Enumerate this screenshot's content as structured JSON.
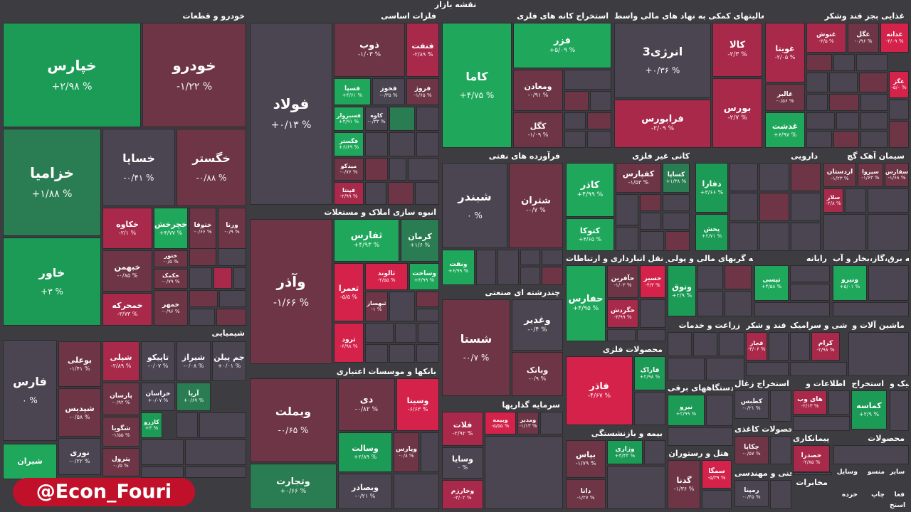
{
  "title": "نقشه بازار",
  "watermark": "@Econ_Fouri",
  "colors": {
    "background": "#3d3c40",
    "strong_green": "#1fa85b",
    "green": "#1b9b55",
    "mid_green": "#2a7d52",
    "neutral": "#4a4550",
    "dark_red": "#6d3545",
    "red": "#a8294a",
    "strong_red": "#d4224a"
  },
  "chart_data": {
    "type": "treemap",
    "sectors": [
      {
        "name": "خودرو و قطعات",
        "stocks": [
          {
            "symbol": "خپارس",
            "change": "+۲/۹۸ %"
          },
          {
            "symbol": "خودرو",
            "change": "-۱/۲۲ %"
          },
          {
            "symbol": "خزامیا",
            "change": "+۱/۸۸ %"
          },
          {
            "symbol": "خساپا",
            "change": "-۰/۴۱ %"
          },
          {
            "symbol": "خگستر",
            "change": "-۰/۸۸ %"
          },
          {
            "symbol": "خاور",
            "change": "+۳ %"
          },
          {
            "symbol": "خکاوه",
            "change": "-۲/۱ %"
          },
          {
            "symbol": "خچرخش",
            "change": "+۴/۷۷ %"
          },
          {
            "symbol": "ختوقا",
            "change": "-۰/۶۶ %"
          },
          {
            "symbol": "ورنا",
            "change": "-۰/۹ %"
          },
          {
            "symbol": "خبهمن",
            "change": "-۰/۸۵ %"
          },
          {
            "symbol": "ختور",
            "change": "-۰/۵ %"
          },
          {
            "symbol": "خکمک",
            "change": "-۰/۷۹ %"
          },
          {
            "symbol": "خمحرکه",
            "change": "-۳/۷۳ %"
          },
          {
            "symbol": "خمهر",
            "change": "-۰/۹۶ %"
          }
        ]
      },
      {
        "name": "فلزات اساسی",
        "stocks": [
          {
            "symbol": "فولاد",
            "change": "+۰/۱۳ %"
          },
          {
            "symbol": "ذوب",
            "change": "-۱/۰۳ %"
          },
          {
            "symbol": "فنفت",
            "change": "-۲/۸۹ %"
          },
          {
            "symbol": "فسپا",
            "change": "+۴/۶۱ %"
          },
          {
            "symbol": "فخوز",
            "change": "-۰/۳۵ %"
          },
          {
            "symbol": "فروژ",
            "change": "-۱/۶۵ %"
          },
          {
            "symbol": "فسبزوار",
            "change": "+۴/۹۱ %"
          },
          {
            "symbol": "کاوه",
            "change": "-۰/۳۳ %"
          },
          {
            "symbol": "فگستر",
            "change": "+۶/۶۹ %"
          },
          {
            "symbol": "میدکو",
            "change": "-۰/۷۶ %"
          },
          {
            "symbol": "فپنتا",
            "change": "-۲/۹۹ %"
          }
        ]
      },
      {
        "name": "استخراج کانه های فلزی",
        "stocks": [
          {
            "symbol": "کاما",
            "change": "+۴/۷۵ %"
          },
          {
            "symbol": "فزر",
            "change": "+۵/۰۹ %"
          },
          {
            "symbol": "ومعادن",
            "change": "-۰/۹۱ %"
          },
          {
            "symbol": "کگل",
            "change": "-۱/۰۹ %"
          }
        ]
      },
      {
        "name": "فعالیتهای کمکی به نهاد های مالی واسط",
        "stocks": [
          {
            "symbol": "انرژی3",
            "change": "+۰/۳۶ %"
          },
          {
            "symbol": "کالا",
            "change": "-۲/۳ %"
          },
          {
            "symbol": "بورس",
            "change": "-۲/۷ %"
          },
          {
            "symbol": "فرابورس",
            "change": "-۲/۰۹ %"
          }
        ]
      },
      {
        "name": "غذایی بجز قند وشکر",
        "stocks": [
          {
            "symbol": "غویتا",
            "change": "-۲/۰۵ %"
          },
          {
            "symbol": "غنوش",
            "change": "-۳/۵ %"
          },
          {
            "symbol": "غگل",
            "change": "-۰/۹۶ %"
          },
          {
            "symbol": "غدانه",
            "change": "-۴/۰۹ %"
          },
          {
            "symbol": "غالبر",
            "change": "-۰/۵۶ %"
          },
          {
            "symbol": "غگز",
            "change": "-۵/۰ %"
          },
          {
            "symbol": "غدشت",
            "change": "+۶/۹۷ %"
          }
        ]
      },
      {
        "name": "انبوه سازی املاک و مستغلات",
        "stocks": [
          {
            "symbol": "وآذر",
            "change": "-۱/۶۶ %"
          },
          {
            "symbol": "ثفارس",
            "change": "+۴/۹۳ %"
          },
          {
            "symbol": "کرمان",
            "change": "+۱/۶ %"
          },
          {
            "symbol": "ثعمرا",
            "change": "-۵/۵ %"
          },
          {
            "symbol": "ثالوند",
            "change": "-۴/۵۵ %"
          },
          {
            "symbol": "وساخت",
            "change": "+۴/۹۹ %"
          },
          {
            "symbol": "ثبهساز",
            "change": "-۱ %"
          },
          {
            "symbol": "ثرود",
            "change": "-۶/۹۸ %"
          }
        ]
      },
      {
        "name": "فرآورده های نفتی",
        "stocks": [
          {
            "symbol": "شبندر",
            "change": "۰ %"
          },
          {
            "symbol": "شتران",
            "change": "-۰/۷ %"
          },
          {
            "symbol": "ونفت",
            "change": "+۶/۹۹ %"
          }
        ]
      },
      {
        "name": "کانی غیر فلزی",
        "stocks": [
          {
            "symbol": "کاذر",
            "change": "+۴/۹۹ %"
          },
          {
            "symbol": "کفپارس",
            "change": "-۱/۵۳ %"
          },
          {
            "symbol": "کساپا",
            "change": "+۱/۳۸ %"
          },
          {
            "symbol": "کتوکا",
            "change": "+۴/۶۵ %"
          }
        ]
      },
      {
        "name": "دارویی",
        "stocks": [
          {
            "symbol": "دفارا",
            "change": "+۳/۶۶ %"
          },
          {
            "symbol": "پخش",
            "change": "+۲/۷۱ %"
          }
        ]
      },
      {
        "name": "سیمان آهک گچ",
        "stocks": [
          {
            "symbol": "اردستان",
            "change": "-۱/۲۳ %"
          },
          {
            "symbol": "سیزوا",
            "change": "-۱/۶۳ %"
          },
          {
            "symbol": "سفارس",
            "change": "-۱/۶۸ %"
          },
          {
            "symbol": "سلار",
            "change": "-۲/۸ %"
          }
        ]
      },
      {
        "name": "حمل و نقل انبارداری و ارتباطات",
        "stocks": [
          {
            "symbol": "حفارس",
            "change": "+۴/۹۵ %"
          },
          {
            "symbol": "حآفرین",
            "change": "-۱/۰۳ %"
          },
          {
            "symbol": "حسیر",
            "change": "-۴/۳ %"
          },
          {
            "symbol": "حگردش",
            "change": "-۳/۹۹ %"
          }
        ]
      },
      {
        "name": "واسطه گریهای مالی و پولی",
        "stocks": [
          {
            "symbol": "وتوق",
            "change": "+۲/۹ %"
          }
        ]
      },
      {
        "name": "رایانه",
        "stocks": [
          {
            "symbol": "تپسی",
            "change": "+۴/۵۸ %"
          }
        ]
      },
      {
        "name": "عرضه برق،گاز،بخار و آب",
        "stocks": [
          {
            "symbol": "ونیرو",
            "change": "+۵/۰۱ %"
          }
        ]
      },
      {
        "name": "شیمیایی",
        "stocks": [
          {
            "symbol": "فارس",
            "change": "۰ %"
          },
          {
            "symbol": "بوعلی",
            "change": "-۱/۴۱ %"
          },
          {
            "symbol": "شپلی",
            "change": "-۲/۸۹ %"
          },
          {
            "symbol": "تاپیکو",
            "change": "-۰/۰۷ %"
          },
          {
            "symbol": "شیراز",
            "change": "-۰/۰۸ %"
          },
          {
            "symbol": "جم پیلن",
            "change": "+۰/۰۱ %"
          },
          {
            "symbol": "شپدیس",
            "change": "-۰/۵۸ %"
          },
          {
            "symbol": "پارسان",
            "change": "-۰/۹۲ %"
          },
          {
            "symbol": "خراسان",
            "change": "+۰/۰۷ %"
          },
          {
            "symbol": "آریا",
            "change": "+۰/۶۷ %"
          },
          {
            "symbol": "شگویا",
            "change": "-۱/۵۵ %"
          },
          {
            "symbol": "کازرو",
            "change": "+۳ %"
          },
          {
            "symbol": "نوری",
            "change": "-۰/۲۲ %"
          },
          {
            "symbol": "پترول",
            "change": "-۰/۵ %"
          },
          {
            "symbol": "شیران",
            "change": ""
          }
        ]
      },
      {
        "name": "بانکها و موسسات اعتباری",
        "stocks": [
          {
            "symbol": "وبملت",
            "change": "-۰/۶۵ %"
          },
          {
            "symbol": "دی",
            "change": "-۰/۸۲ %"
          },
          {
            "symbol": "وسینا",
            "change": "-۶/۶۳ %"
          },
          {
            "symbol": "وسالت",
            "change": "+۲/۸۹ %"
          },
          {
            "symbol": "وپارس",
            "change": "-۰/۸ %"
          },
          {
            "symbol": "وتجارت",
            "change": "+۰/۶۶ %"
          },
          {
            "symbol": "وبصادر",
            "change": "-۰/۲۱ %"
          }
        ]
      },
      {
        "name": "چندرشته ای صنعتی",
        "stocks": [
          {
            "symbol": "شستا",
            "change": "-۰/۷ %"
          },
          {
            "symbol": "وغدیر",
            "change": "-۰/۴ %"
          },
          {
            "symbol": "وبانک",
            "change": "-۰/۹ %"
          }
        ]
      },
      {
        "name": "سرمایه گذاریها",
        "stocks": [
          {
            "symbol": "فلات",
            "change": "-۲/۹۲ %"
          },
          {
            "symbol": "وبیمه",
            "change": "-۵/۵۵ %"
          },
          {
            "symbol": "ومدیر",
            "change": "-۱/۱۳ %"
          },
          {
            "symbol": "وسایا",
            "change": "۰ %"
          },
          {
            "symbol": "وخارزم",
            "change": "-۳/۰۲ %"
          }
        ]
      },
      {
        "name": "محصولات فلزی",
        "stocks": [
          {
            "symbol": "فاذر",
            "change": "-۴/۶۷ %"
          },
          {
            "symbol": "فاراک",
            "change": "+۲/۹۸ %"
          }
        ]
      },
      {
        "name": "بیمه و بازنشستگی",
        "stocks": [
          {
            "symbol": "بپاس",
            "change": "-۱/۷۹ %"
          },
          {
            "symbol": "وزاری",
            "change": "+۳/۴۴ %"
          },
          {
            "symbol": "دانا",
            "change": "-۱/۲۷ %"
          }
        ]
      },
      {
        "name": "زراعت و خدمات",
        "stocks": []
      },
      {
        "name": "دستگاههای برقی",
        "stocks": [
          {
            "symbol": "نیرو",
            "change": "+۲/۹۹ %"
          }
        ]
      },
      {
        "name": "هتل و رستوران",
        "stocks": [
          {
            "symbol": "گدنا",
            "change": "-۱/۳۶ %"
          },
          {
            "symbol": "سمگا",
            "change": "-۵/۳۹ %"
          }
        ]
      },
      {
        "name": "قند و شکر",
        "stocks": [
          {
            "symbol": "قجار",
            "change": "-۳/۰۶ %"
          }
        ]
      },
      {
        "name": "کاشی و سرامیک",
        "stocks": [
          {
            "symbol": "کرام",
            "change": "-۲/۹۸ %"
          }
        ]
      },
      {
        "name": "ماشین آلات و",
        "stocks": []
      },
      {
        "name": "استخراج زغال",
        "stocks": [
          {
            "symbol": "کطبس",
            "change": "-۰/۲۱ %"
          }
        ]
      },
      {
        "name": "اطلاعات و",
        "stocks": [
          {
            "symbol": "های وب",
            "change": "-۲/۱۳ %"
          }
        ]
      },
      {
        "name": "استخراج",
        "stocks": [
          {
            "symbol": "کماسه",
            "change": "+۲/۹ %"
          }
        ]
      },
      {
        "name": "لاستیک و",
        "stocks": []
      },
      {
        "name": "محصولات کاغذی",
        "stocks": [
          {
            "symbol": "چکاپا",
            "change": "-۰/۵۷ %"
          }
        ]
      },
      {
        "name": "پیمانکاری",
        "stocks": [
          {
            "symbol": "خصدرا",
            "change": "-۲/۸۵ %"
          }
        ]
      },
      {
        "name": "محصولات",
        "stocks": []
      },
      {
        "name": "فنی و مهندسی",
        "stocks": [
          {
            "symbol": "رمپنا",
            "change": "-۰/۴۵ %"
          }
        ]
      },
      {
        "name": "مخابرات",
        "stocks": []
      },
      {
        "name": "سایر",
        "stocks": []
      },
      {
        "name": "منسو",
        "stocks": []
      },
      {
        "name": "وسایل",
        "stocks": []
      },
      {
        "name": "خرده",
        "stocks": []
      },
      {
        "name": "فعا",
        "stocks": []
      },
      {
        "name": "استخ",
        "stocks": []
      },
      {
        "name": "چاپ",
        "stocks": []
      }
    ]
  }
}
